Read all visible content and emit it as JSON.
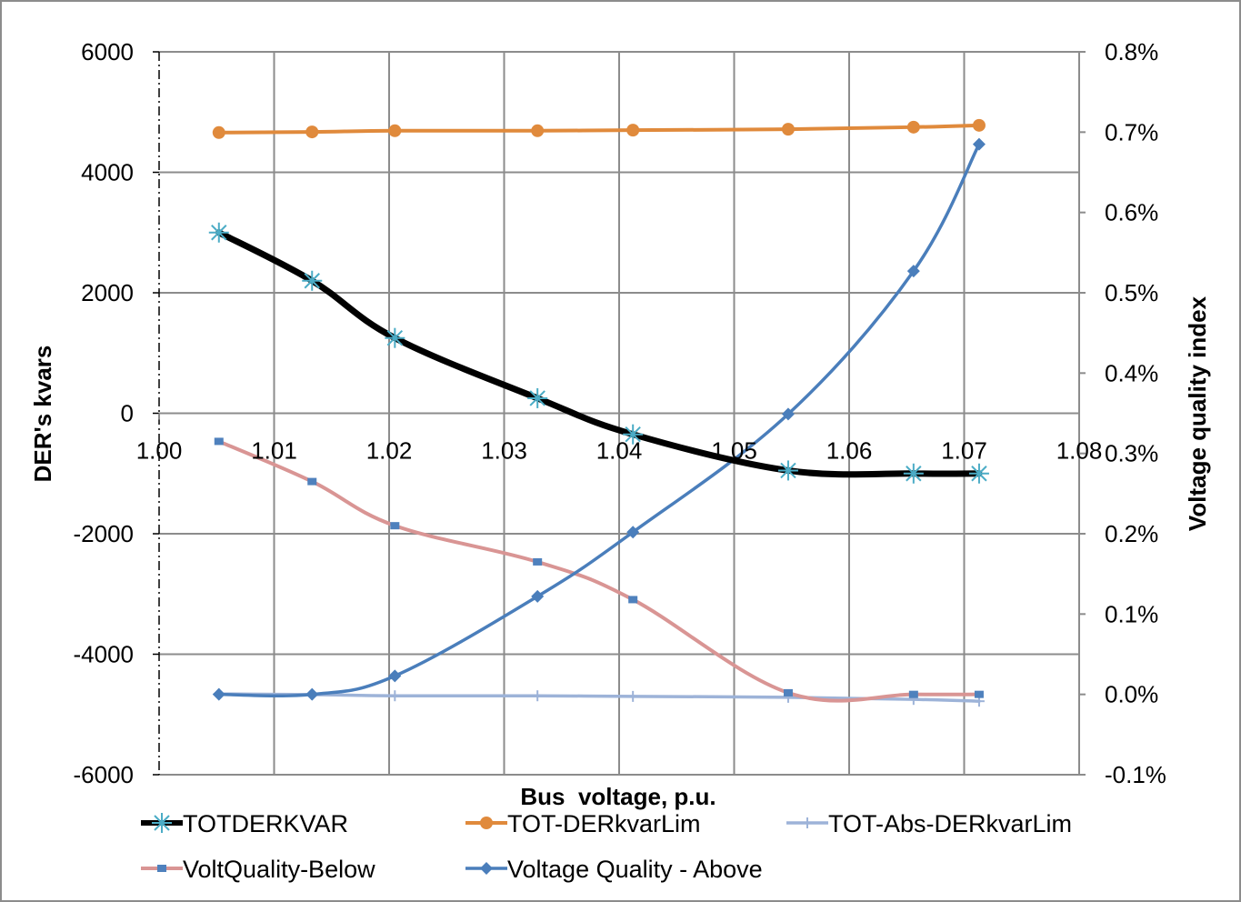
{
  "chart_data": {
    "type": "line",
    "title": "",
    "xlabel": "Bus  voltage, p.u.",
    "ylabel": "DER's kvars",
    "y2label": "Voltage quality index",
    "xlim": [
      1.0,
      1.08
    ],
    "ylim": [
      -6000,
      6000
    ],
    "y2lim": [
      -0.001,
      0.008
    ],
    "grid": true,
    "x_tick_labels": [
      "1.00",
      "1.01",
      "1.02",
      "1.03",
      "1.04",
      "1.05",
      "1.06",
      "1.07",
      "1.08"
    ],
    "y_tick_labels": [
      "6000",
      "4000",
      "2000",
      "0",
      "-2000",
      "-4000",
      "-6000"
    ],
    "y2_tick_labels": [
      "0.8%",
      "0.7%",
      "0.6%",
      "0.5%",
      "0.4%",
      "0.3%",
      "0.2%",
      "0.1%",
      "0.0%",
      "-0.1%"
    ],
    "x": [
      1.0052,
      1.0133,
      1.0205,
      1.0329,
      1.0412,
      1.0547,
      1.0656,
      1.0713
    ],
    "series": [
      {
        "name": "TOTDERKVAR",
        "axis": "left",
        "color": "#000000",
        "marker": "asterisk",
        "values": [
          3000,
          2200,
          1250,
          250,
          -350,
          -950,
          -1000,
          -1000
        ]
      },
      {
        "name": "TOT-DERkvarLim",
        "axis": "left",
        "color": "#E08A3C",
        "marker": "circle",
        "values": [
          4660,
          4670,
          4690,
          4690,
          4700,
          4715,
          4750,
          4780
        ]
      },
      {
        "name": "TOT-Abs-DERkvarLim",
        "axis": "left",
        "color": "#9DB3D8",
        "marker": "plus",
        "values": [
          -4660,
          -4670,
          -4690,
          -4690,
          -4700,
          -4715,
          -4750,
          -4780
        ]
      },
      {
        "name": "VoltQuality-Below",
        "axis": "right",
        "color": "#D99594",
        "marker": "square",
        "values": [
          0.00315,
          0.00265,
          0.0021,
          0.00165,
          0.00118,
          2e-05,
          0.0,
          0.0
        ]
      },
      {
        "name": "Voltage Quality - Above",
        "axis": "right",
        "color": "#4A7EBB",
        "marker": "diamond",
        "values": [
          0.0,
          0.0,
          0.00023,
          0.00122,
          0.00202,
          0.00349,
          0.00527,
          0.00685
        ]
      }
    ]
  }
}
